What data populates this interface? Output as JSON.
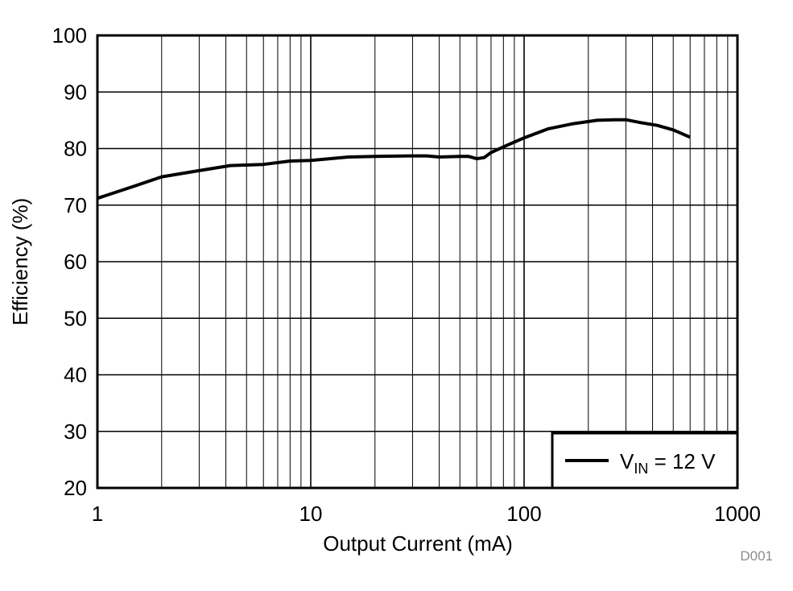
{
  "chart_data": {
    "type": "line",
    "xlabel": "Output Current (mA)",
    "ylabel": "Efficiency (%)",
    "x_scale": "log",
    "xlim": [
      1,
      1000
    ],
    "ylim": [
      20,
      100
    ],
    "x_ticks": [
      "1",
      "10",
      "100",
      "1000"
    ],
    "y_ticks": [
      "20",
      "30",
      "40",
      "50",
      "60",
      "70",
      "80",
      "90",
      "100"
    ],
    "grid": true,
    "legend_position": "bottom-right",
    "series": [
      {
        "name_main": "V",
        "name_sub": "IN",
        "name_rest": " = 12 V",
        "color": "#000000",
        "x": [
          1,
          1.5,
          2,
          3,
          4.2,
          6,
          8,
          10,
          15,
          20,
          30,
          35,
          40,
          50,
          55,
          60,
          65,
          70,
          80,
          100,
          130,
          170,
          220,
          270,
          300,
          350,
          420,
          500,
          600
        ],
        "y": [
          71.2,
          73.4,
          75.0,
          76.1,
          77.0,
          77.2,
          77.8,
          77.9,
          78.5,
          78.6,
          78.7,
          78.7,
          78.5,
          78.6,
          78.6,
          78.2,
          78.4,
          79.3,
          80.3,
          81.9,
          83.5,
          84.4,
          85.0,
          85.1,
          85.1,
          84.6,
          84.1,
          83.3,
          82.0
        ]
      }
    ]
  },
  "figure_code": "D001"
}
